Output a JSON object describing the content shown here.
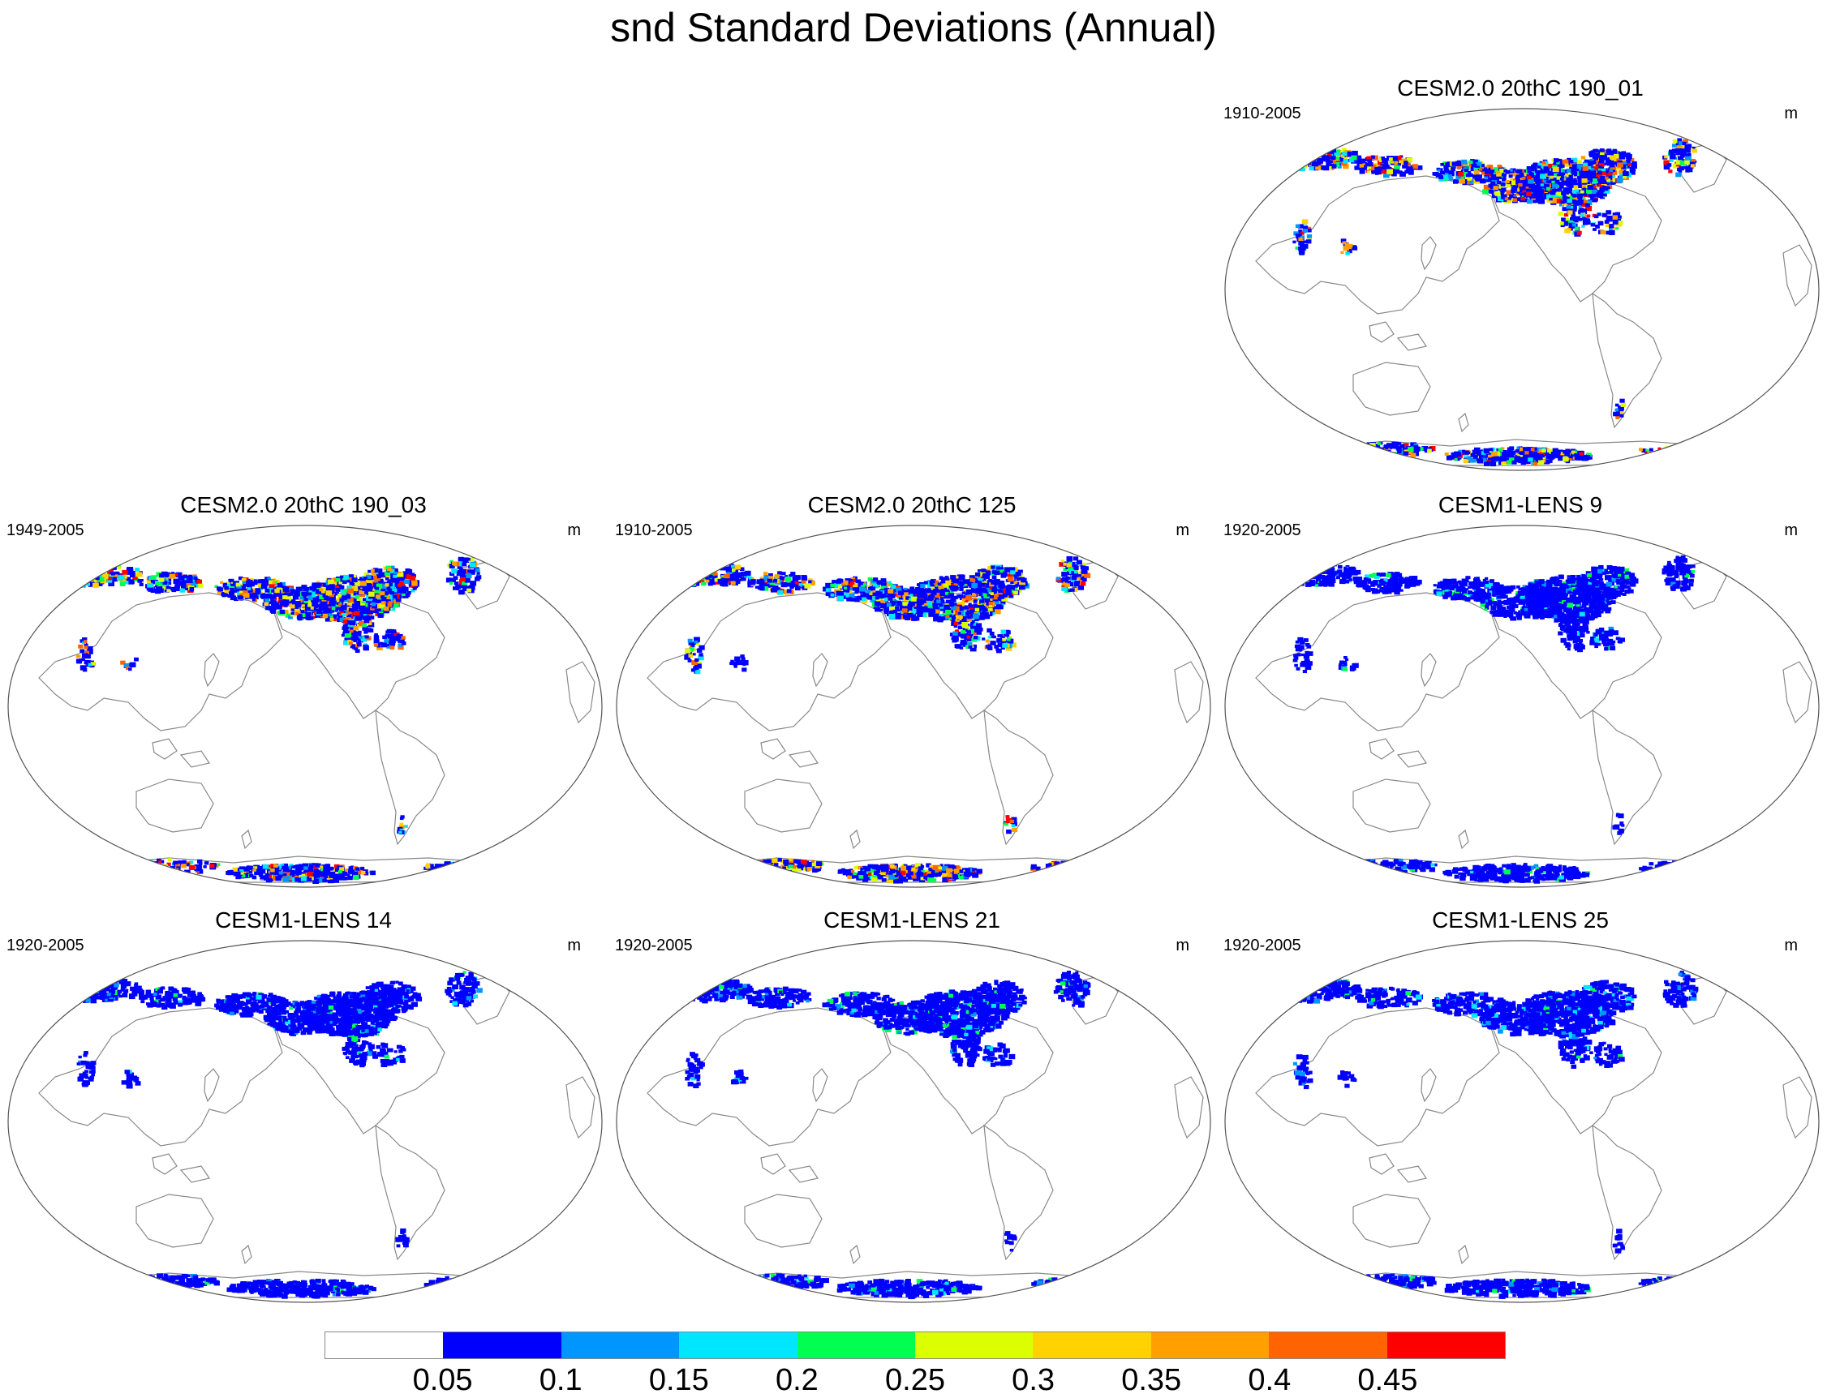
{
  "title": "snd Standard Deviations (Annual)",
  "unit": "m",
  "panels": [
    {
      "title": "CESM2.0 20thC 190_01",
      "years": "1910-2005",
      "intensity": "high"
    },
    {
      "title": "CESM2.0 20thC 190_03",
      "years": "1949-2005",
      "intensity": "high"
    },
    {
      "title": "CESM2.0 20thC 125",
      "years": "1910-2005",
      "intensity": "high"
    },
    {
      "title": "CESM1-LENS 9",
      "years": "1920-2005",
      "intensity": "low"
    },
    {
      "title": "CESM1-LENS 14",
      "years": "1920-2005",
      "intensity": "low"
    },
    {
      "title": "CESM1-LENS 21",
      "years": "1920-2005",
      "intensity": "low"
    },
    {
      "title": "CESM1-LENS 25",
      "years": "1920-2005",
      "intensity": "low"
    }
  ],
  "colorbar": {
    "colors": [
      "#ffffff",
      "#0000ff",
      "#0096ff",
      "#00e6ff",
      "#00ff50",
      "#dcff00",
      "#ffd200",
      "#ffa000",
      "#ff6400",
      "#ff0000"
    ],
    "labels": [
      "0.05",
      "0.1",
      "0.15",
      "0.2",
      "0.25",
      "0.3",
      "0.35",
      "0.4",
      "0.45"
    ]
  }
}
